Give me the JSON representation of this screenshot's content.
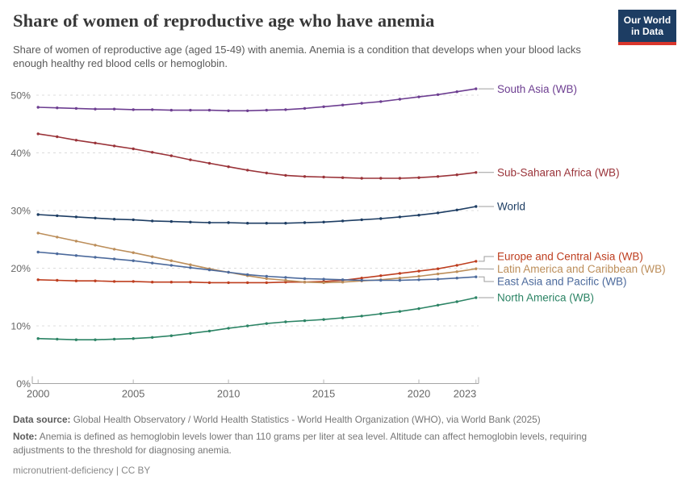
{
  "header": {
    "title": "Share of women of reproductive age who have anemia",
    "subtitle": "Share of women of reproductive age (aged 15-49) with anemia. Anemia is a condition that develops when your blood lacks enough healthy red blood cells or hemoglobin.",
    "logo": {
      "line1": "Our World",
      "line2": "in Data",
      "bg_color": "#1d3d63",
      "stripe_color": "#da362c"
    }
  },
  "chart_data": {
    "type": "line",
    "title": "Share of women of reproductive age who have anemia",
    "xlabel": "",
    "ylabel": "",
    "x": [
      2000,
      2001,
      2002,
      2003,
      2004,
      2005,
      2006,
      2007,
      2008,
      2009,
      2010,
      2011,
      2012,
      2013,
      2014,
      2015,
      2016,
      2017,
      2018,
      2019,
      2020,
      2021,
      2022,
      2023
    ],
    "xlim": [
      2000,
      2023
    ],
    "ylim": [
      0,
      52
    ],
    "xticks": [
      2000,
      2005,
      2010,
      2015,
      2020,
      2023
    ],
    "xtick_labels": [
      "2000",
      "2005",
      "2010",
      "2015",
      "2020",
      "2023"
    ],
    "yticks": [
      0,
      10,
      20,
      30,
      40,
      50
    ],
    "ytick_labels": [
      "0%",
      "10%",
      "20%",
      "30%",
      "40%",
      "50%"
    ],
    "grid": "horizontal-dashed",
    "legend_position": "right-end-labels",
    "unit": "%",
    "series": [
      {
        "name": "South Asia (WB)",
        "color": "#6D3E91",
        "values": [
          47.9,
          47.8,
          47.7,
          47.6,
          47.6,
          47.5,
          47.5,
          47.4,
          47.4,
          47.4,
          47.3,
          47.3,
          47.4,
          47.5,
          47.7,
          48.0,
          48.3,
          48.6,
          48.9,
          49.3,
          49.7,
          50.1,
          50.6,
          51.1
        ]
      },
      {
        "name": "Sub-Saharan Africa (WB)",
        "color": "#9A3339",
        "values": [
          43.3,
          42.8,
          42.2,
          41.7,
          41.2,
          40.7,
          40.1,
          39.5,
          38.8,
          38.2,
          37.6,
          37.0,
          36.5,
          36.1,
          35.9,
          35.8,
          35.7,
          35.6,
          35.6,
          35.6,
          35.7,
          35.9,
          36.2,
          36.6
        ]
      },
      {
        "name": "World",
        "color": "#1D3D63",
        "values": [
          29.3,
          29.1,
          28.9,
          28.7,
          28.5,
          28.4,
          28.2,
          28.1,
          28.0,
          27.9,
          27.9,
          27.8,
          27.8,
          27.8,
          27.9,
          28.0,
          28.2,
          28.4,
          28.6,
          28.9,
          29.2,
          29.6,
          30.1,
          30.7
        ]
      },
      {
        "name": "Europe and Central Asia (WB)",
        "color": "#BE3E1F",
        "values": [
          18.0,
          17.9,
          17.8,
          17.8,
          17.7,
          17.7,
          17.6,
          17.6,
          17.6,
          17.5,
          17.5,
          17.5,
          17.5,
          17.6,
          17.6,
          17.7,
          17.9,
          18.3,
          18.7,
          19.1,
          19.5,
          19.9,
          20.5,
          21.2
        ]
      },
      {
        "name": "Latin America and Caribbean (WB)",
        "color": "#BC8E5A",
        "values": [
          26.1,
          25.4,
          24.7,
          24.0,
          23.3,
          22.7,
          22.0,
          21.3,
          20.6,
          19.9,
          19.3,
          18.7,
          18.2,
          17.9,
          17.6,
          17.5,
          17.6,
          17.8,
          18.0,
          18.3,
          18.6,
          19.0,
          19.4,
          19.9
        ]
      },
      {
        "name": "East Asia and Pacific (WB)",
        "color": "#4C6A9C",
        "values": [
          22.8,
          22.5,
          22.2,
          21.9,
          21.6,
          21.3,
          20.9,
          20.5,
          20.1,
          19.7,
          19.3,
          18.9,
          18.6,
          18.4,
          18.2,
          18.1,
          18.0,
          17.9,
          17.9,
          17.9,
          18.0,
          18.1,
          18.3,
          18.5
        ]
      },
      {
        "name": "North America (WB)",
        "color": "#2C8465",
        "values": [
          7.8,
          7.7,
          7.6,
          7.6,
          7.7,
          7.8,
          8.0,
          8.3,
          8.7,
          9.1,
          9.6,
          10.0,
          10.4,
          10.7,
          10.9,
          11.1,
          11.4,
          11.7,
          12.1,
          12.5,
          13.0,
          13.6,
          14.2,
          14.9
        ]
      }
    ]
  },
  "footer": {
    "data_source_label": "Data source:",
    "data_source_text": " Global Health Observatory / World Health Statistics - World Health Organization (WHO), via World Bank (2025)",
    "note_label": "Note:",
    "note_text": " Anemia is defined as hemoglobin levels lower than 110 grams per liter at sea level. Altitude can affect hemoglobin levels, requiring adjustments to the threshold for diagnosing anemia.",
    "license": "micronutrient-deficiency | CC BY"
  }
}
